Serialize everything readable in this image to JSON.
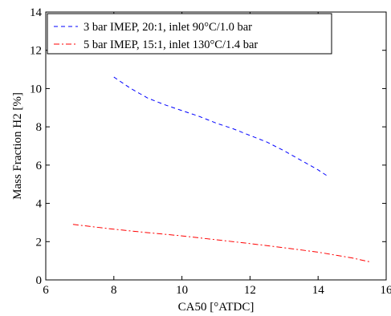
{
  "chart_data": {
    "type": "line",
    "xlabel": "CA50 [°ATDC]",
    "ylabel": "Mass Fraction H2 [%]",
    "xlim": [
      6,
      16
    ],
    "ylim": [
      0,
      14
    ],
    "xticks": [
      6,
      8,
      10,
      12,
      14,
      16
    ],
    "yticks": [
      0,
      2,
      4,
      6,
      8,
      10,
      12,
      14
    ],
    "grid": false,
    "legend_position": "top-left",
    "series": [
      {
        "name": "3 bar IMEP, 20:1, inlet 90°C/1.0 bar",
        "color": "#0000ff",
        "dash": "dashed",
        "x": [
          8.0,
          8.5,
          9.0,
          9.5,
          10.0,
          10.5,
          11.0,
          11.5,
          12.0,
          12.5,
          13.0,
          13.5,
          14.0,
          14.3
        ],
        "y": [
          10.6,
          10.0,
          9.5,
          9.15,
          8.85,
          8.55,
          8.2,
          7.9,
          7.55,
          7.2,
          6.75,
          6.25,
          5.75,
          5.4
        ]
      },
      {
        "name": "5 bar IMEP, 15:1, inlet 130°C/1.4 bar",
        "color": "#ff0000",
        "dash": "dashdot",
        "x": [
          6.8,
          8.0,
          9.0,
          10.0,
          11.0,
          12.0,
          13.0,
          14.0,
          15.0,
          15.5
        ],
        "y": [
          2.9,
          2.65,
          2.47,
          2.3,
          2.1,
          1.9,
          1.68,
          1.45,
          1.15,
          0.95
        ]
      }
    ]
  }
}
